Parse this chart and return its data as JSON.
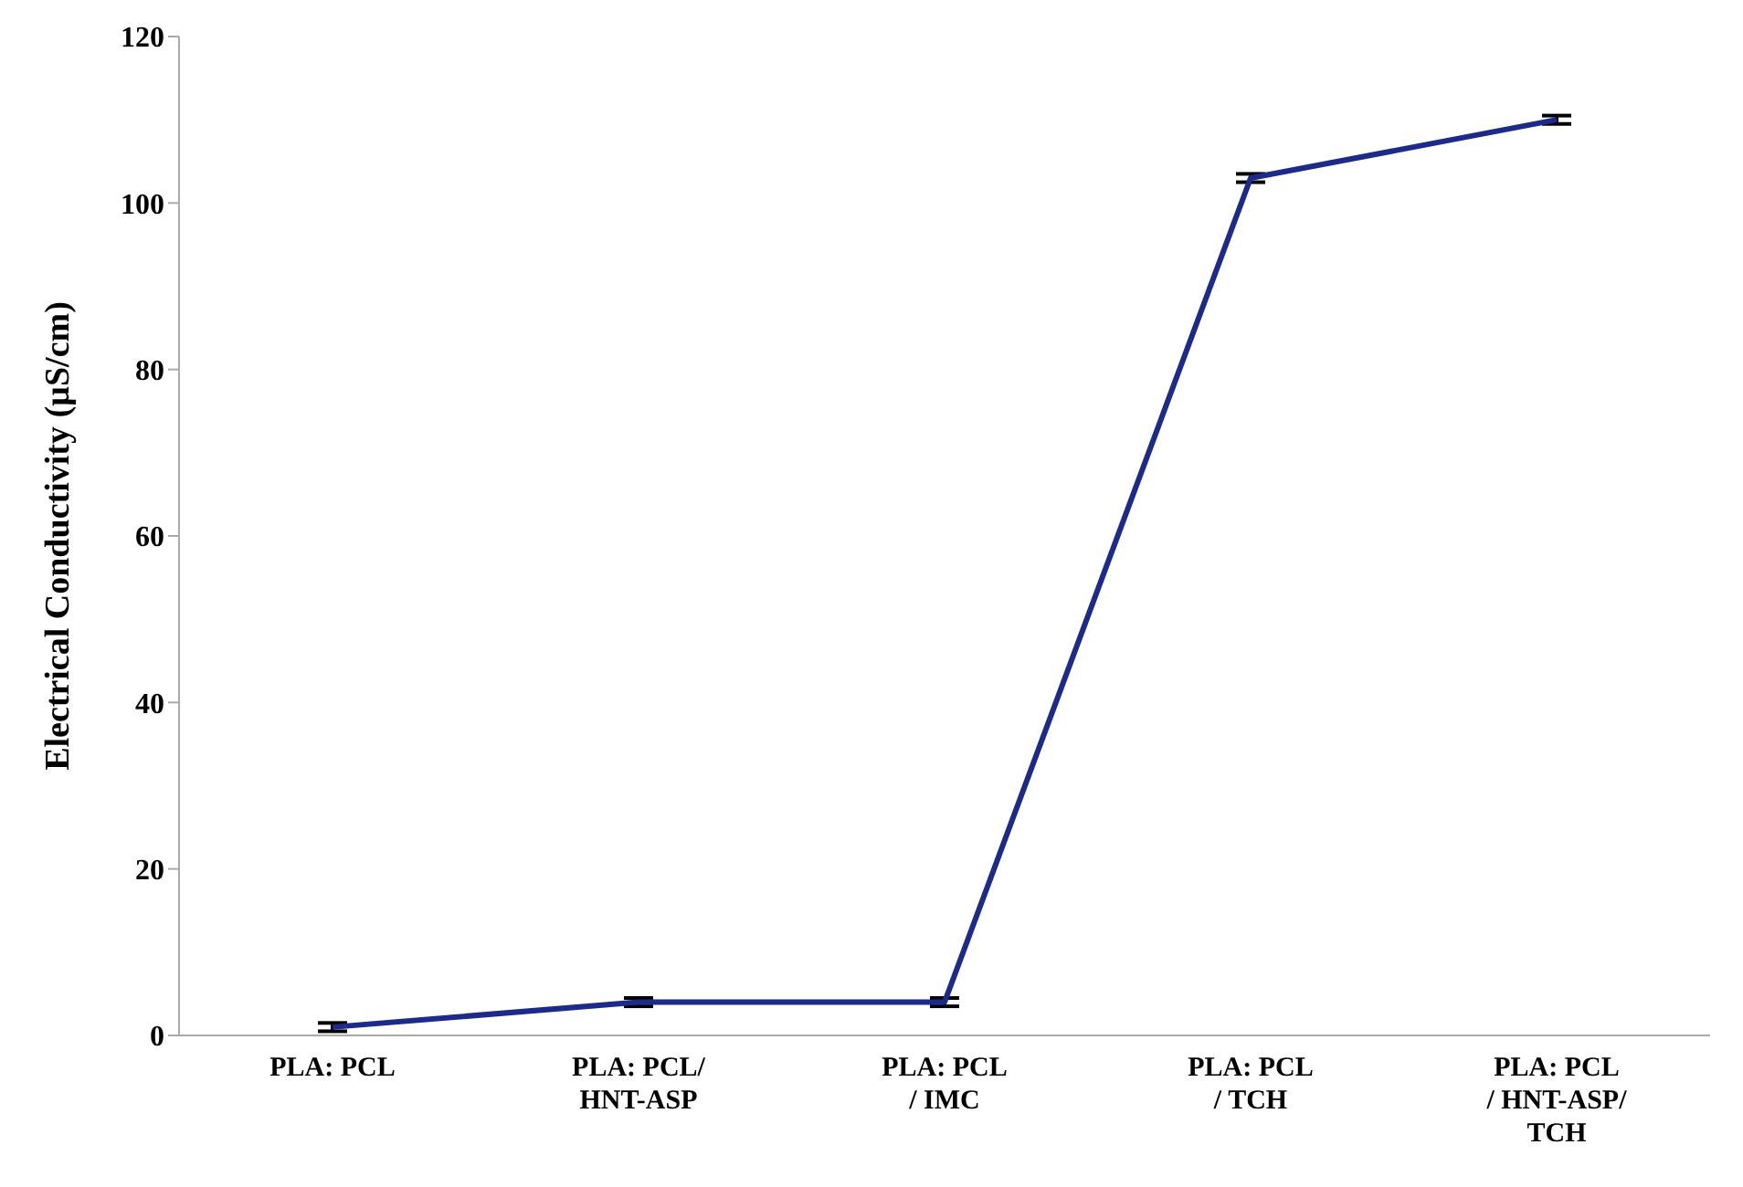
{
  "chart_data": {
    "type": "line",
    "ylabel": "Electrical Conductivity (µS/cm)",
    "categories": [
      "PLA: PCL",
      "PLA: PCL/\nHNT-ASP",
      "PLA: PCL\n/ IMC",
      "PLA: PCL\n/ TCH",
      "PLA: PCL\n/ HNT-ASP/\nTCH"
    ],
    "series": [
      {
        "color": "#1c2a8a",
        "values": [
          1,
          4,
          4,
          103,
          110
        ],
        "errors": [
          0.5,
          0.5,
          0.5,
          0.5,
          0.5
        ]
      }
    ],
    "ylim": [
      0,
      120
    ],
    "yticks": [
      0,
      20,
      40,
      60,
      80,
      100,
      120
    ],
    "grid": false,
    "marker": "none",
    "line_style": "solid"
  }
}
